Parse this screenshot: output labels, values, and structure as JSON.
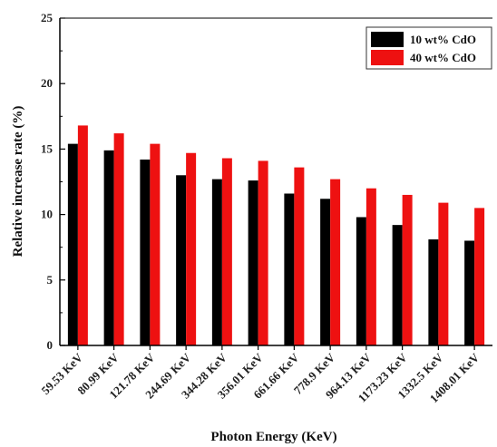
{
  "chart_data": {
    "type": "bar",
    "title": "",
    "xlabel": "Photon Energy (KeV)",
    "ylabel": "Relative increase rate (%)",
    "ylim": [
      0,
      25
    ],
    "yticks": [
      0,
      5,
      10,
      15,
      20,
      25
    ],
    "grid": false,
    "legend_position": "top-right",
    "categories": [
      "59.53 KeV",
      "80.99 KeV",
      "121.78 KeV",
      "244.69 KeV",
      "344.28 KeV",
      "356.01 KeV",
      "661.66 KeV",
      "778.9 KeV",
      "964.13 KeV",
      "1173.23 KeV",
      "1332.5 KeV",
      "1408.01 KeV"
    ],
    "series": [
      {
        "name": "10 wt% CdO",
        "color": "#000000",
        "values": [
          15.4,
          14.9,
          14.2,
          13.0,
          12.7,
          12.6,
          11.6,
          11.2,
          9.8,
          9.2,
          8.1,
          8.0
        ]
      },
      {
        "name": "40 wt% CdO",
        "color": "#ee1111",
        "values": [
          16.8,
          16.2,
          15.4,
          14.7,
          14.3,
          14.1,
          13.6,
          12.7,
          12.0,
          11.5,
          10.9,
          10.5
        ]
      }
    ]
  }
}
